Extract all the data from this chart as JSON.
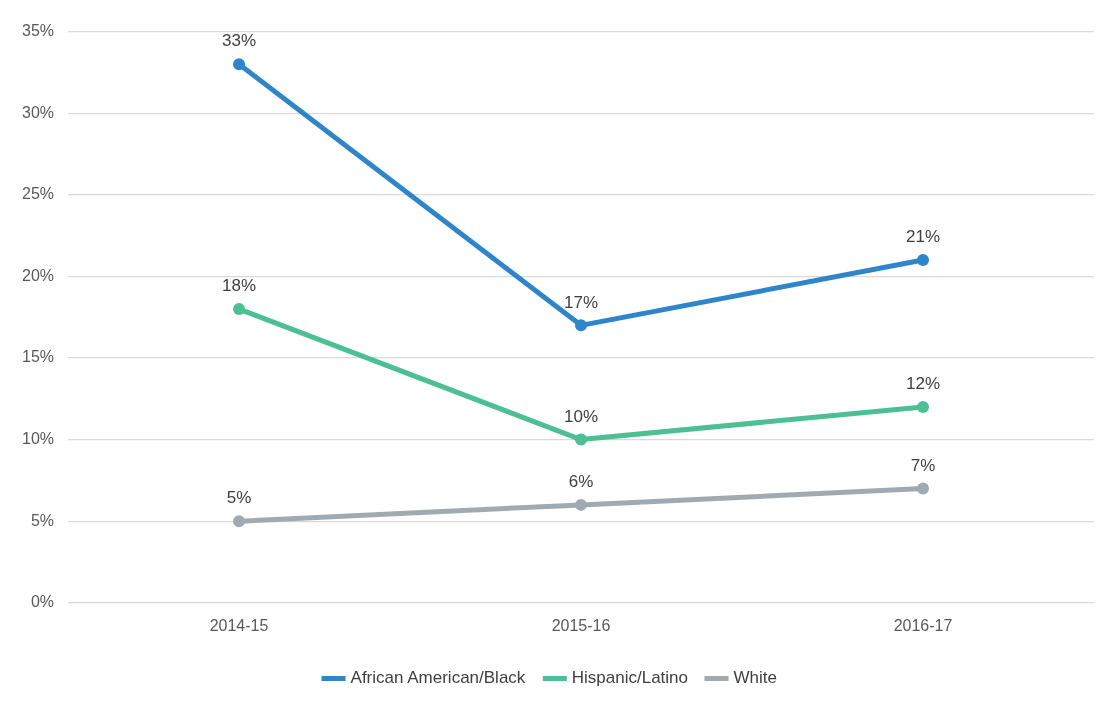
{
  "chart_data": {
    "type": "line",
    "categories": [
      "2014-15",
      "2015-16",
      "2016-17"
    ],
    "series": [
      {
        "name": "African American/Black",
        "color": "#2e85c9",
        "values": [
          33,
          17,
          21
        ],
        "value_labels": [
          "33%",
          "17%",
          "21%"
        ]
      },
      {
        "name": "Hispanic/Latino",
        "color": "#4cbf95",
        "values": [
          18,
          10,
          12
        ],
        "value_labels": [
          "18%",
          "10%",
          "12%"
        ]
      },
      {
        "name": "White",
        "color": "#a1a9b1",
        "values": [
          5,
          6,
          7
        ],
        "value_labels": [
          "5%",
          "6%",
          "7%"
        ]
      }
    ],
    "ylim": [
      0,
      35
    ],
    "yticks": [
      {
        "value": 0,
        "label": "0%"
      },
      {
        "value": 5,
        "label": "5%"
      },
      {
        "value": 10,
        "label": "10%"
      },
      {
        "value": 15,
        "label": "15%"
      },
      {
        "value": 20,
        "label": "20%"
      },
      {
        "value": 25,
        "label": "25%"
      },
      {
        "value": 30,
        "label": "30%"
      },
      {
        "value": 35,
        "label": "35%"
      }
    ],
    "grid": "y",
    "legend": "bottom",
    "marker": "circle",
    "line_style": "solid"
  }
}
